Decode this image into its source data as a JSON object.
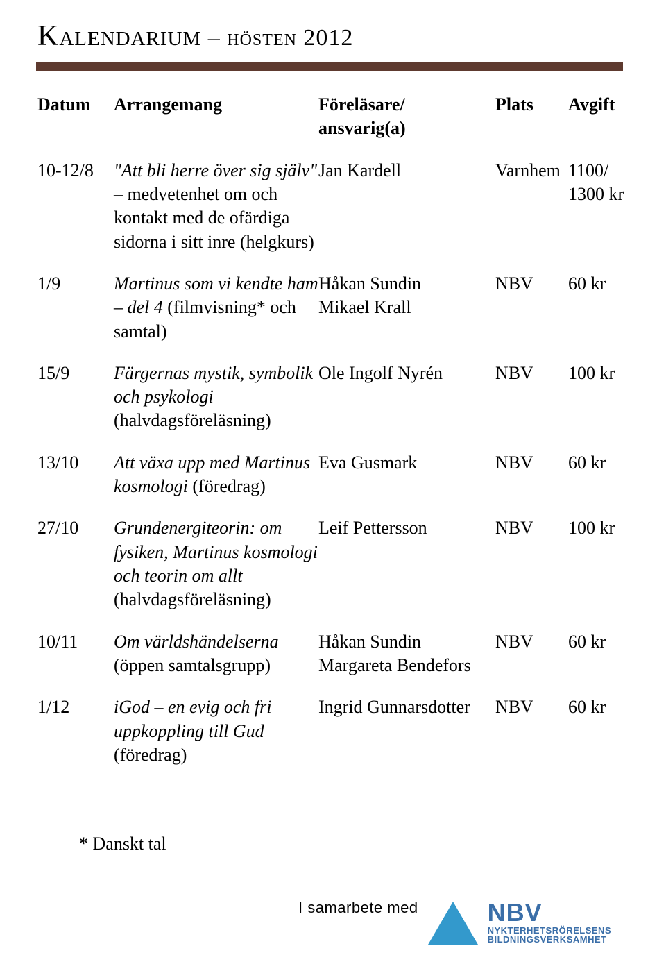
{
  "title_main": "Kalendarium",
  "title_sep": " – ",
  "title_sub": "hösten 2012",
  "rule_color": "#5e3a2f",
  "columns": {
    "date": "Datum",
    "event": "Arrangemang",
    "lecturer": "Föreläsare/ ansvarig(a)",
    "place": "Plats",
    "fee": "Avgift"
  },
  "rows": [
    {
      "date": "10-12/8",
      "event_title": "\"Att bli herre över sig själv\" – ",
      "event_sub": "medvetenhet om och kontakt med de ofärdiga sidorna i sitt inre (helgkurs)",
      "lecturer": "Jan Kardell",
      "place": "Varnhem",
      "fee": "1100/ 1300 kr"
    },
    {
      "date": "1/9",
      "event_title": "Martinus som vi kendte ham – del 4",
      "event_sub": " (filmvisning* och samtal)",
      "lecturer": "Håkan Sundin\nMikael Krall",
      "place": "NBV",
      "fee": "60 kr"
    },
    {
      "date": "15/9",
      "event_title": "Färgernas mystik, symbolik och psykologi",
      "event_sub": " (halvdagsföreläsning)",
      "lecturer": "Ole Ingolf Nyrén",
      "place": "NBV",
      "fee": "100 kr"
    },
    {
      "date": "13/10",
      "event_title": "Att växa upp med Martinus kosmologi",
      "event_sub": " (föredrag)",
      "lecturer": "Eva Gusmark",
      "place": "NBV",
      "fee": "60 kr"
    },
    {
      "date": "27/10",
      "event_title": "Grundenergiteorin: om fysiken, Martinus kosmologi och teorin om allt",
      "event_sub": " (halvdagsföreläsning)",
      "lecturer": "Leif Pettersson",
      "place": "NBV",
      "fee": "100 kr"
    },
    {
      "date": "10/11",
      "event_title": "Om världshändelserna",
      "event_sub": " (öppen samtalsgrupp)",
      "lecturer": "Håkan Sundin\nMargareta Bendefors",
      "place": "NBV",
      "fee": "60 kr"
    },
    {
      "date": "1/12",
      "event_title": "iGod – en evig och fri uppkoppling till Gud",
      "event_sub": " (föredrag)",
      "lecturer": "Ingrid Gunnarsdotter",
      "place": "NBV",
      "fee": "60 kr"
    }
  ],
  "footnote": "* Danskt tal",
  "collab_label": "I samarbete med",
  "logo": {
    "triangle_color": "#3399cc",
    "text_color": "#3a6ea8",
    "acronym": "NBV",
    "line1": "NYKTERHETSRÖRELSENS",
    "line2": "BILDNINGSVERKSAMHET"
  }
}
